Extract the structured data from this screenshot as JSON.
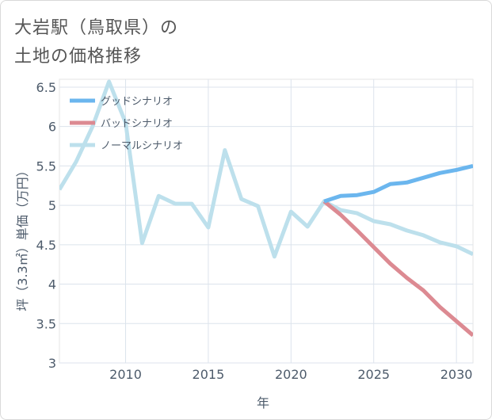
{
  "title": {
    "line1": "大岩駅（鳥取県）の",
    "line2": "土地の価格推移"
  },
  "chart_data": {
    "type": "line",
    "xlabel": "年",
    "ylabel": "坪（3.3㎡）単価（万円）",
    "xlim": [
      2006,
      2031
    ],
    "ylim": [
      3,
      6.6
    ],
    "x_ticks": [
      2010,
      2015,
      2020,
      2025,
      2030
    ],
    "y_ticks": [
      3,
      3.5,
      4,
      4.5,
      5,
      5.5,
      6,
      6.5
    ],
    "x_tick_labels": [
      "2010",
      "2015",
      "2020",
      "2025",
      "2030"
    ],
    "y_tick_labels": [
      "3",
      "3.5",
      "4",
      "4.5",
      "5",
      "5.5",
      "6",
      "6.5"
    ],
    "legend_position": "top-left",
    "series": [
      {
        "name": "グッドシナリオ",
        "color": "#6bb6ee",
        "x": [
          2022,
          2023,
          2024,
          2025,
          2026,
          2027,
          2028,
          2029,
          2030,
          2031
        ],
        "values": [
          5.05,
          5.12,
          5.13,
          5.17,
          5.27,
          5.29,
          5.35,
          5.41,
          5.45,
          5.5
        ]
      },
      {
        "name": "バッドシナリオ",
        "color": "#dc8a92",
        "x": [
          2022,
          2023,
          2024,
          2025,
          2026,
          2027,
          2028,
          2029,
          2030,
          2031
        ],
        "values": [
          5.05,
          4.88,
          4.68,
          4.47,
          4.26,
          4.08,
          3.92,
          3.71,
          3.53,
          3.35
        ]
      },
      {
        "name": "ノーマルシナリオ",
        "color": "#bde0ec",
        "x": [
          2006,
          2007,
          2008,
          2009,
          2010,
          2011,
          2012,
          2013,
          2014,
          2015,
          2016,
          2017,
          2018,
          2019,
          2020,
          2021,
          2022,
          2023,
          2024,
          2025,
          2026,
          2027,
          2028,
          2029,
          2030,
          2031
        ],
        "values": [
          5.2,
          5.55,
          6.0,
          6.57,
          6.05,
          4.52,
          5.12,
          5.02,
          5.02,
          4.72,
          5.7,
          5.08,
          4.99,
          4.35,
          4.92,
          4.73,
          5.05,
          4.94,
          4.9,
          4.8,
          4.76,
          4.68,
          4.62,
          4.53,
          4.48,
          4.38
        ]
      }
    ]
  }
}
